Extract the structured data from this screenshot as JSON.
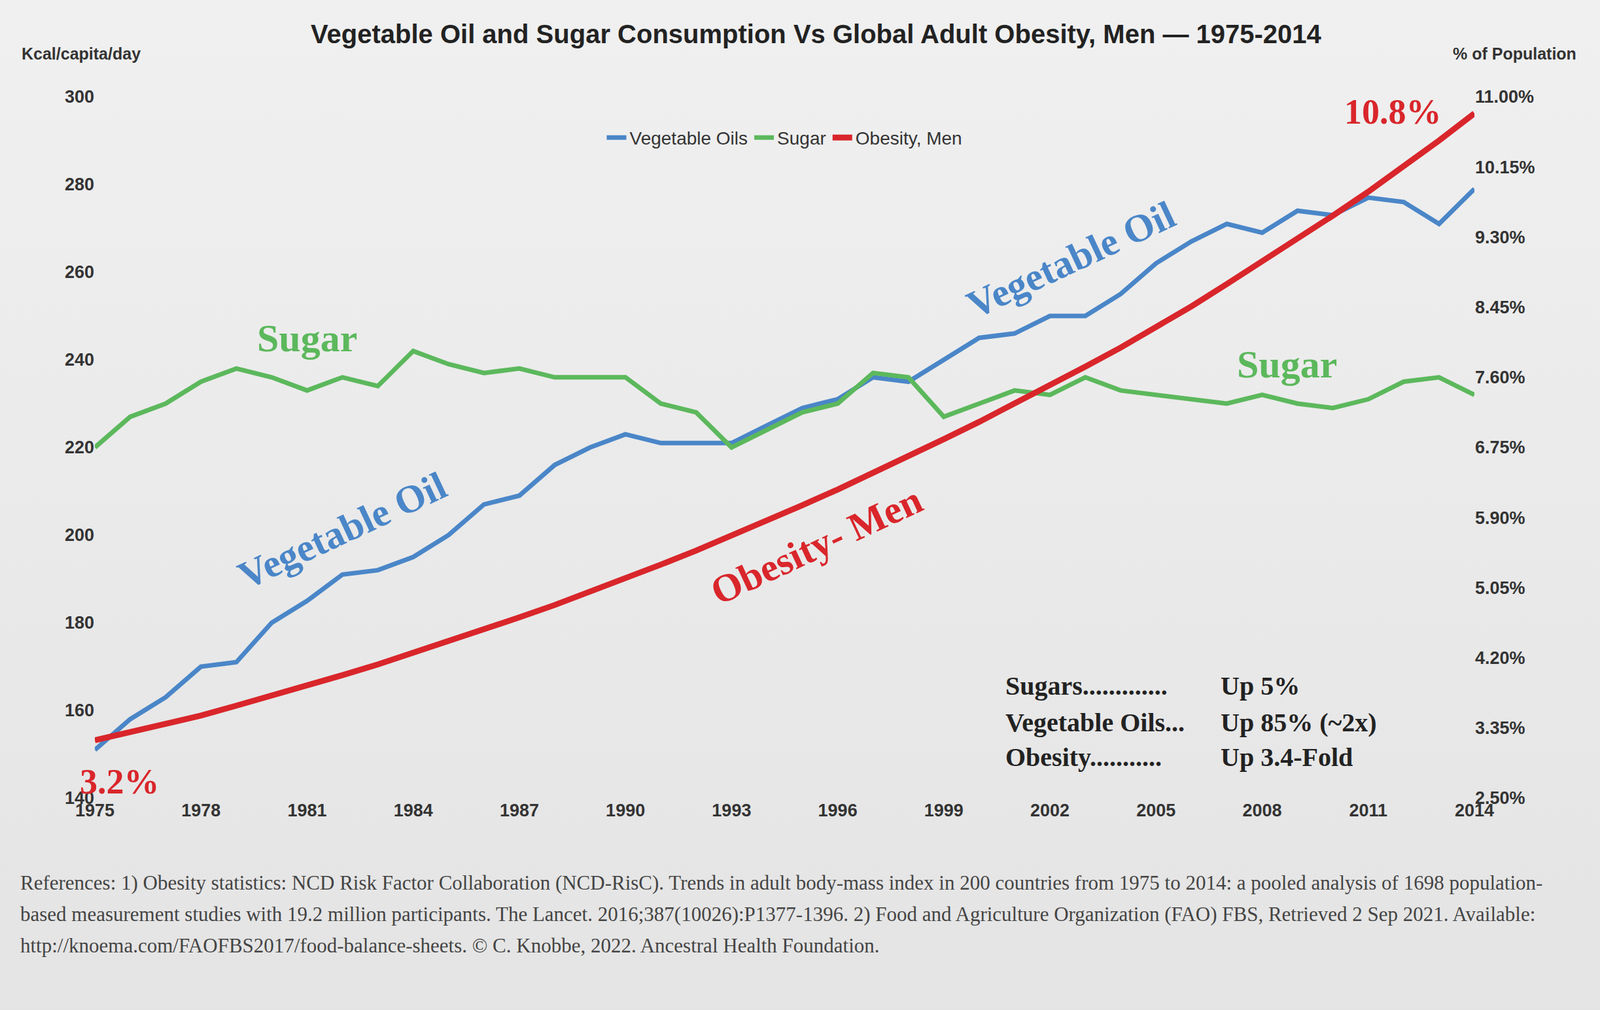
{
  "chart_data": {
    "type": "line",
    "title": "Vegetable Oil and Sugar Consumption Vs Global Adult Obesity, Men — 1975-2014",
    "ylabel": "Kcal/capita/day",
    "y2label": "% of Population",
    "x": [
      1975,
      1976,
      1977,
      1978,
      1979,
      1980,
      1981,
      1982,
      1983,
      1984,
      1985,
      1986,
      1987,
      1988,
      1989,
      1990,
      1991,
      1992,
      1993,
      1994,
      1995,
      1996,
      1997,
      1998,
      1999,
      2000,
      2001,
      2002,
      2003,
      2004,
      2005,
      2006,
      2007,
      2008,
      2009,
      2010,
      2011,
      2012,
      2013,
      2014
    ],
    "xlim": [
      1975,
      2014
    ],
    "xticks": [
      1975,
      1978,
      1981,
      1984,
      1987,
      1990,
      1993,
      1996,
      1999,
      2002,
      2005,
      2008,
      2011,
      2014
    ],
    "ylim": [
      140,
      300
    ],
    "yticks": [
      140,
      160,
      180,
      200,
      220,
      240,
      260,
      280,
      300
    ],
    "y2lim": [
      2.5,
      11
    ],
    "y2ticks": [
      {
        "value": 2.5,
        "label": "2.50%"
      },
      {
        "value": 3.35,
        "label": "3.35%"
      },
      {
        "value": 4.2,
        "label": "4.20%"
      },
      {
        "value": 5.05,
        "label": "5.05%"
      },
      {
        "value": 5.9,
        "label": "5.90%"
      },
      {
        "value": 6.75,
        "label": "6.75%"
      },
      {
        "value": 7.6,
        "label": "7.60%"
      },
      {
        "value": 8.45,
        "label": "8.45%"
      },
      {
        "value": 9.3,
        "label": "9.30%"
      },
      {
        "value": 10.15,
        "label": "10.15%"
      },
      {
        "value": 11,
        "label": "11.00%"
      }
    ],
    "grid": false,
    "legend": "top",
    "series": [
      {
        "name": "Vegetable Oils",
        "color": "#4a86c8",
        "axis": "y",
        "values": [
          151,
          158,
          163,
          170,
          171,
          180,
          185,
          191,
          192,
          195,
          200,
          207,
          209,
          216,
          220,
          223,
          221,
          221,
          221,
          225,
          229,
          231,
          236,
          235,
          240,
          245,
          246,
          250,
          250,
          255,
          262,
          267,
          271,
          269,
          274,
          273,
          277,
          276,
          271,
          279
        ]
      },
      {
        "name": "Sugar",
        "color": "#5cb85c",
        "axis": "y",
        "values": [
          220,
          227,
          230,
          235,
          238,
          236,
          233,
          236,
          234,
          242,
          239,
          237,
          238,
          236,
          236,
          236,
          230,
          228,
          220,
          224,
          228,
          230,
          237,
          236,
          227,
          230,
          233,
          232,
          236,
          233,
          232,
          231,
          230,
          232,
          230,
          229,
          231,
          235,
          236,
          232
        ]
      },
      {
        "name": "Obesity, Men",
        "color": "#d9262b",
        "axis": "y2",
        "values": [
          3.2,
          3.3,
          3.4,
          3.5,
          3.62,
          3.74,
          3.86,
          3.99,
          4.12,
          4.26,
          4.4,
          4.54,
          4.69,
          4.84,
          5.0,
          5.16,
          5.33,
          5.5,
          5.68,
          5.86,
          6.05,
          6.24,
          6.44,
          6.64,
          6.85,
          7.06,
          7.28,
          7.5,
          7.73,
          7.96,
          8.2,
          8.46,
          8.73,
          9.0,
          9.28,
          9.56,
          9.85,
          10.15,
          10.47,
          10.8
        ]
      }
    ],
    "annotations": [
      {
        "text": "Sugar",
        "x": 1981,
        "y": 245,
        "axis": "y",
        "color": "#5cb85c"
      },
      {
        "text": "Vegetable Oil",
        "x": 1982,
        "y": 201,
        "axis": "y",
        "color": "#4a86c8"
      },
      {
        "text": "Vegetable Oil",
        "x": 2002.6,
        "y": 262.8,
        "axis": "y",
        "color": "#4a86c8"
      },
      {
        "text": "Sugar",
        "x": 2008.7,
        "y": 239,
        "axis": "y",
        "color": "#5cb85c"
      },
      {
        "text": "Obesity- Men",
        "x": 1995.4,
        "y": 197.6,
        "axis": "y",
        "color": "#d9262b"
      },
      {
        "text": "10.8%",
        "x": 2011.7,
        "y": 296.6,
        "axis": "y",
        "color": "#d9262b"
      },
      {
        "text": "3.2%",
        "x": 1975.7,
        "y": 143.7,
        "axis": "y",
        "color": "#d9262b"
      }
    ],
    "summary": [
      {
        "label": "Sugars.............",
        "value": "Up 5%"
      },
      {
        "label": "Vegetable Oils...",
        "value": "Up 85% (~2x)"
      },
      {
        "label": "Obesity...........",
        "value": "Up 3.4-Fold"
      }
    ],
    "references": "References:  1) Obesity statistics: NCD Risk Factor Collaboration (NCD-RisC). Trends in adult body-mass index in 200 countries from 1975 to 2014: a pooled analysis of 1698 population-based measurement studies with 19.2 million participants. The Lancet. 2016;387(10026):P1377-1396.  2) Food and Agriculture Organization (FAO) FBS, Retrieved 2 Sep 2021. Available: http://knoema.com/FAOFBS2017/food-balance-sheets. © C. Knobbe, 2022. Ancestral Health Foundation."
  }
}
